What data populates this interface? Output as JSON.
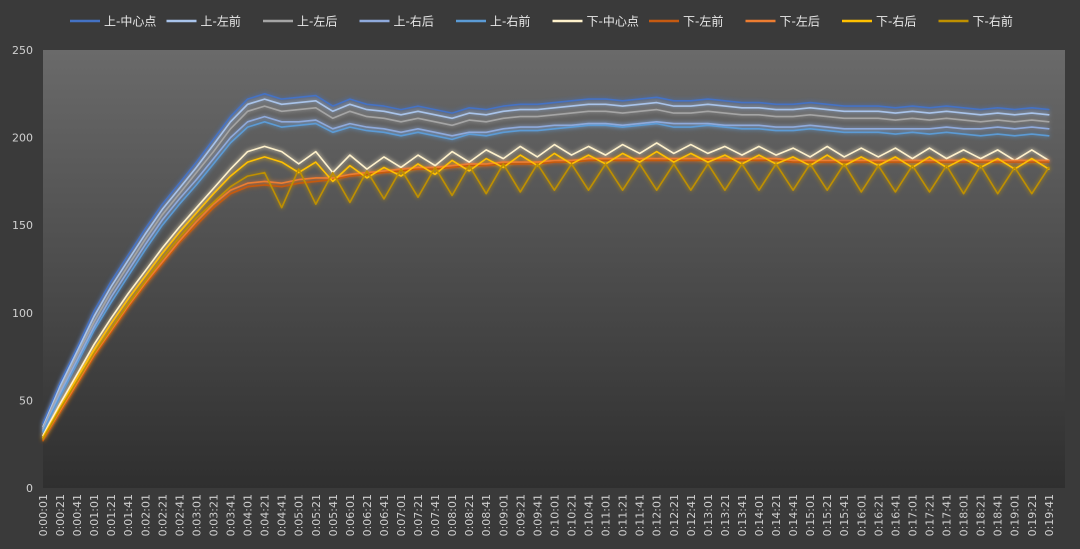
{
  "chart_data": {
    "type": "line",
    "title": "",
    "xlabel": "",
    "ylabel": "",
    "ylim": [
      0,
      250
    ],
    "yticks": [
      0,
      50,
      100,
      150,
      200,
      250
    ],
    "grid": false,
    "legend_position": "top",
    "x_tick_labels": [
      "0:00:01",
      "0:00:21",
      "0:00:41",
      "0:01:01",
      "0:01:21",
      "0:01:41",
      "0:02:01",
      "0:02:21",
      "0:02:41",
      "0:03:01",
      "0:03:21",
      "0:03:41",
      "0:04:01",
      "0:04:21",
      "0:04:41",
      "0:05:01",
      "0:05:21",
      "0:05:41",
      "0:06:01",
      "0:06:21",
      "0:06:41",
      "0:07:01",
      "0:07:21",
      "0:07:41",
      "0:08:01",
      "0:08:21",
      "0:08:41",
      "0:09:01",
      "0:09:21",
      "0:09:41",
      "0:10:01",
      "0:10:21",
      "0:10:41",
      "0:11:01",
      "0:11:21",
      "0:11:41",
      "0:12:01",
      "0:12:21",
      "0:12:41",
      "0:13:01",
      "0:13:21",
      "0:13:41",
      "0:14:01",
      "0:14:21",
      "0:14:41",
      "0:15:01",
      "0:15:21",
      "0:15:41",
      "0:16:01",
      "0:16:21",
      "0:16:41",
      "0:17:01",
      "0:17:21",
      "0:17:41",
      "0:18:01",
      "0:18:21",
      "0:18:41",
      "0:19:01",
      "0:19:21",
      "0:19:41"
    ],
    "x_seconds": [
      1,
      21,
      41,
      61,
      81,
      101,
      121,
      141,
      161,
      181,
      201,
      221,
      241,
      261,
      281,
      301,
      321,
      341,
      361,
      381,
      401,
      421,
      441,
      461,
      481,
      501,
      521,
      541,
      561,
      581,
      601,
      621,
      641,
      661,
      681,
      701,
      721,
      741,
      761,
      781,
      801,
      821,
      841,
      861,
      881,
      901,
      921,
      941,
      961,
      981,
      1001,
      1021,
      1041,
      1061,
      1081,
      1101,
      1121,
      1141,
      1161,
      1181
    ],
    "series": [
      {
        "name": "上-中心点",
        "color": "#4472c4",
        "values": [
          37,
          60,
          80,
          101,
          118,
          133,
          148,
          162,
          174,
          186,
          199,
          212,
          222,
          225,
          222,
          223,
          224,
          218,
          222,
          219,
          218,
          216,
          218,
          216,
          214,
          217,
          216,
          218,
          219,
          219,
          220,
          221,
          222,
          222,
          221,
          222,
          223,
          221,
          221,
          222,
          221,
          220,
          220,
          219,
          219,
          220,
          219,
          218,
          218,
          218,
          217,
          218,
          217,
          218,
          217,
          216,
          217,
          216,
          217,
          216
        ]
      },
      {
        "name": "上-左前",
        "color": "#a9c4eb",
        "values": [
          35,
          58,
          78,
          98,
          115,
          130,
          145,
          159,
          171,
          183,
          196,
          209,
          219,
          222,
          219,
          220,
          221,
          215,
          219,
          216,
          215,
          213,
          215,
          213,
          211,
          214,
          213,
          215,
          216,
          216,
          217,
          218,
          219,
          219,
          218,
          219,
          220,
          218,
          218,
          219,
          218,
          217,
          217,
          216,
          216,
          217,
          216,
          215,
          215,
          215,
          214,
          215,
          214,
          215,
          214,
          213,
          214,
          213,
          214,
          213
        ]
      },
      {
        "name": "上-左后",
        "color": "#a5a5a5",
        "values": [
          34,
          56,
          76,
          95,
          112,
          127,
          142,
          156,
          168,
          180,
          192,
          205,
          215,
          218,
          215,
          216,
          217,
          211,
          215,
          212,
          211,
          209,
          211,
          209,
          207,
          210,
          209,
          211,
          212,
          212,
          213,
          214,
          215,
          215,
          214,
          215,
          216,
          214,
          214,
          215,
          214,
          213,
          213,
          212,
          212,
          213,
          212,
          211,
          211,
          211,
          210,
          211,
          210,
          211,
          210,
          209,
          210,
          209,
          210,
          209
        ]
      },
      {
        "name": "上-右后",
        "color": "#8faadc",
        "values": [
          33,
          54,
          73,
          92,
          109,
          124,
          139,
          153,
          165,
          176,
          188,
          200,
          209,
          212,
          209,
          209,
          210,
          205,
          208,
          206,
          205,
          203,
          205,
          203,
          201,
          203,
          203,
          205,
          206,
          206,
          207,
          207,
          208,
          208,
          207,
          208,
          209,
          208,
          208,
          208,
          207,
          207,
          207,
          206,
          206,
          207,
          206,
          205,
          205,
          205,
          205,
          205,
          205,
          206,
          205,
          205,
          206,
          205,
          206,
          205
        ]
      },
      {
        "name": "上-右前",
        "color": "#5b9bd5",
        "values": [
          32,
          52,
          71,
          90,
          106,
          121,
          136,
          150,
          162,
          173,
          185,
          197,
          206,
          209,
          206,
          207,
          208,
          203,
          206,
          204,
          203,
          201,
          203,
          201,
          199,
          202,
          201,
          203,
          204,
          204,
          205,
          206,
          207,
          207,
          206,
          207,
          208,
          206,
          206,
          207,
          206,
          205,
          205,
          204,
          204,
          205,
          204,
          203,
          203,
          203,
          202,
          203,
          202,
          203,
          202,
          201,
          202,
          201,
          202,
          201
        ]
      },
      {
        "name": "下-中心点",
        "color": "#fff2cc",
        "values": [
          30,
          48,
          65,
          82,
          97,
          111,
          124,
          137,
          149,
          160,
          171,
          182,
          192,
          195,
          192,
          185,
          192,
          180,
          190,
          182,
          189,
          183,
          190,
          184,
          192,
          186,
          193,
          188,
          195,
          189,
          196,
          190,
          195,
          190,
          196,
          191,
          197,
          191,
          196,
          191,
          195,
          190,
          195,
          190,
          194,
          189,
          195,
          189,
          194,
          189,
          194,
          188,
          194,
          188,
          193,
          188,
          193,
          187,
          193,
          187
        ]
      },
      {
        "name": "下-左前",
        "color": "#c55a11",
        "values": [
          27,
          43,
          59,
          75,
          89,
          103,
          116,
          128,
          140,
          150,
          160,
          168,
          172,
          173,
          172,
          174,
          175,
          176,
          178,
          179,
          180,
          181,
          182,
          182,
          183,
          184,
          184,
          185,
          185,
          185,
          186,
          186,
          187,
          187,
          187,
          187,
          187,
          187,
          187,
          187,
          187,
          187,
          187,
          187,
          186,
          186,
          186,
          186,
          186,
          186,
          186,
          186,
          186,
          186,
          186,
          186,
          186,
          186,
          186,
          186
        ]
      },
      {
        "name": "下-左后",
        "color": "#ed7d31",
        "values": [
          28,
          44,
          60,
          76,
          90,
          104,
          117,
          129,
          141,
          152,
          162,
          170,
          174,
          175,
          174,
          176,
          177,
          177,
          179,
          180,
          181,
          182,
          183,
          183,
          184,
          185,
          185,
          186,
          186,
          186,
          187,
          187,
          188,
          188,
          188,
          188,
          188,
          188,
          188,
          188,
          188,
          188,
          188,
          188,
          187,
          187,
          187,
          187,
          187,
          187,
          187,
          187,
          187,
          187,
          187,
          187,
          187,
          187,
          187,
          187
        ]
      },
      {
        "name": "下-右后",
        "color": "#ffc000",
        "values": [
          29,
          46,
          63,
          79,
          94,
          108,
          121,
          134,
          146,
          157,
          168,
          178,
          186,
          189,
          186,
          180,
          186,
          175,
          184,
          177,
          183,
          178,
          185,
          179,
          187,
          181,
          188,
          183,
          190,
          184,
          191,
          185,
          190,
          185,
          191,
          186,
          192,
          186,
          191,
          186,
          190,
          185,
          190,
          185,
          189,
          184,
          190,
          184,
          189,
          184,
          189,
          183,
          189,
          183,
          188,
          183,
          188,
          182,
          188,
          182
        ]
      },
      {
        "name": "下-右前",
        "color": "#bf9000",
        "values": [
          28,
          45,
          61,
          77,
          91,
          105,
          118,
          131,
          143,
          154,
          163,
          172,
          178,
          180,
          160,
          182,
          162,
          180,
          163,
          181,
          165,
          182,
          166,
          183,
          167,
          184,
          168,
          185,
          169,
          185,
          170,
          185,
          170,
          185,
          170,
          185,
          170,
          185,
          170,
          185,
          170,
          185,
          170,
          185,
          170,
          185,
          170,
          185,
          169,
          184,
          169,
          184,
          169,
          184,
          168,
          184,
          168,
          183,
          168,
          183
        ]
      }
    ]
  }
}
